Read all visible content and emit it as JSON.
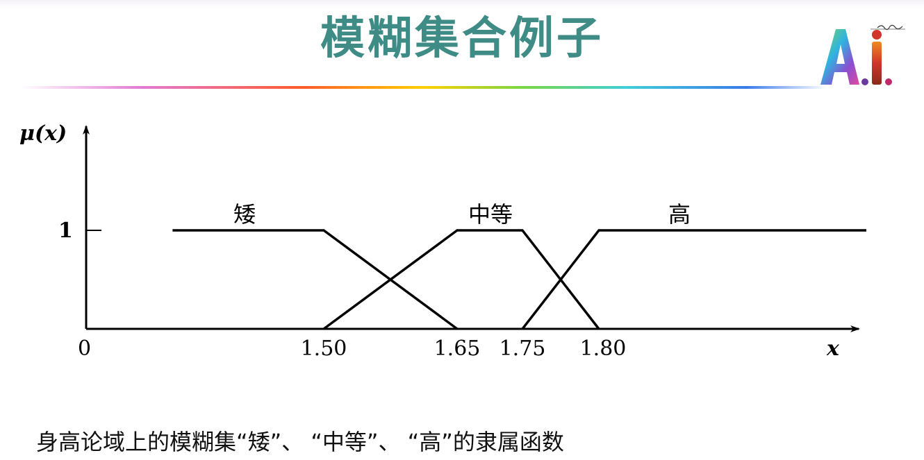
{
  "slide": {
    "title": "模糊集合例子",
    "caption": "身高论域上的模糊集“矮”、 “中等”、 “高”的隶属函数",
    "logo_text": "A.I."
  },
  "colors": {
    "title": "#3f8c86",
    "axis": "#000000"
  },
  "chart_data": {
    "type": "line",
    "ylabel": "μ(x)",
    "xlabel": "x",
    "origin_label": "0",
    "y_ticks": [
      {
        "value": 1,
        "label": "1"
      }
    ],
    "x_ticks": [
      {
        "value": 1.5,
        "label": "1.50"
      },
      {
        "value": 1.65,
        "label": "1.65"
      },
      {
        "value": 1.75,
        "label": "1.75"
      },
      {
        "value": 1.8,
        "label": "1.80"
      }
    ],
    "ylim": [
      0,
      1
    ],
    "grid": false,
    "legend": "none",
    "series": [
      {
        "name": "矮",
        "x": [
          1.33,
          1.5,
          1.65
        ],
        "y": [
          1,
          1,
          0
        ]
      },
      {
        "name": "中等",
        "x": [
          1.5,
          1.65,
          1.75,
          1.8
        ],
        "y": [
          0,
          1,
          1,
          0
        ]
      },
      {
        "name": "高",
        "x": [
          1.75,
          1.8,
          1.975
        ],
        "y": [
          0,
          1,
          1
        ]
      }
    ]
  }
}
